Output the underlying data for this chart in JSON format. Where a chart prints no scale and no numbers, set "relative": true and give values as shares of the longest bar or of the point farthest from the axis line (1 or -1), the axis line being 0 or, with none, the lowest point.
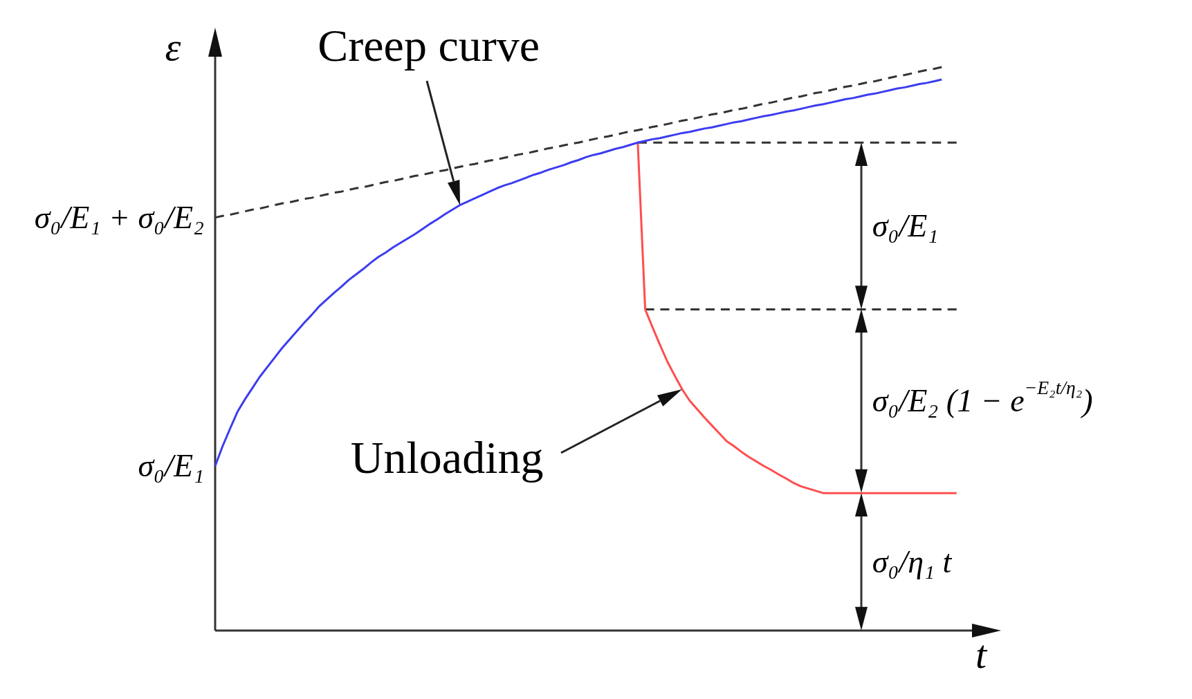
{
  "chart_data": {
    "type": "line",
    "xlabel": "t",
    "ylabel": "ε",
    "relative": true,
    "tick_labels": false,
    "marker": "none",
    "categories": [
      null,
      null,
      null,
      null,
      null,
      null,
      null,
      null,
      null,
      null,
      null,
      null,
      null,
      null,
      null,
      null,
      null,
      null,
      null,
      null,
      null,
      null,
      null,
      null,
      null,
      null,
      null,
      null,
      null,
      null,
      null,
      null,
      null,
      null,
      null,
      null,
      null,
      null,
      null,
      null,
      null,
      null,
      null,
      null,
      null,
      null,
      null,
      null,
      null,
      null,
      null,
      null,
      null,
      null,
      null,
      null,
      null,
      null,
      null,
      null,
      null,
      null,
      null,
      null,
      null,
      null,
      null,
      null,
      null,
      null,
      null,
      null,
      null,
      null,
      null,
      null,
      null,
      null,
      null,
      null,
      null,
      null,
      null,
      null,
      null,
      null,
      null,
      null,
      null,
      null,
      null,
      null,
      null,
      null,
      null,
      null,
      null,
      null,
      null,
      null,
      null,
      null,
      null,
      null,
      null,
      null,
      null
    ],
    "series": [
      {
        "color": "#3c3cf0",
        "values": [
          0.292,
          0.327,
          0.358,
          0.388,
          0.41,
          0.43,
          0.45,
          0.467,
          0.484,
          0.501,
          0.516,
          0.531,
          0.546,
          0.56,
          0.575,
          0.587,
          0.599,
          0.61,
          0.622,
          0.632,
          0.642,
          0.653,
          0.663,
          0.671,
          0.68,
          0.688,
          0.696,
          0.704,
          0.713,
          0.722,
          0.73,
          0.739,
          0.747,
          0.755,
          0.761,
          0.767,
          0.773,
          0.779,
          0.785,
          0.79,
          0.794,
          0.799,
          0.804,
          0.809,
          0.813,
          0.818,
          0.822,
          0.826,
          0.831,
          0.835,
          0.84,
          0.844,
          0.847,
          0.851,
          0.855,
          0.858,
          0.862,
          0.866,
          0.869,
          0.872,
          0.874,
          0.877,
          0.88,
          0.883,
          0.885,
          0.888,
          0.891,
          0.893,
          0.896,
          0.899,
          0.902,
          0.904,
          0.907,
          0.91,
          0.913,
          0.915,
          0.918,
          0.921,
          0.923,
          0.926,
          0.929,
          0.932,
          0.934,
          0.937,
          0.94,
          0.943,
          0.945,
          0.948,
          0.951,
          0.953,
          0.956,
          0.959,
          0.962,
          0.964,
          0.967,
          0.97,
          0.972,
          0.975,
          0.978,
          null,
          null,
          null,
          null,
          null,
          null,
          null,
          null
        ]
      },
      {
        "color": "#333333",
        "line_style": "dashed",
        "values": [
          0.733,
          0.736,
          0.738,
          0.741,
          0.744,
          0.747,
          0.749,
          0.752,
          0.755,
          0.758,
          0.76,
          0.763,
          0.766,
          0.768,
          0.771,
          0.774,
          0.777,
          0.779,
          0.782,
          0.785,
          0.787,
          0.79,
          0.793,
          0.796,
          0.798,
          0.801,
          0.804,
          0.807,
          0.809,
          0.812,
          0.815,
          0.817,
          0.82,
          0.823,
          0.826,
          0.828,
          0.831,
          0.834,
          0.836,
          0.839,
          0.842,
          0.845,
          0.847,
          0.85,
          0.853,
          0.856,
          0.858,
          0.861,
          0.864,
          0.866,
          0.869,
          0.872,
          0.875,
          0.877,
          0.88,
          0.883,
          0.886,
          0.888,
          0.891,
          0.894,
          0.896,
          0.899,
          0.902,
          0.905,
          0.907,
          0.91,
          0.913,
          0.916,
          0.918,
          0.921,
          0.924,
          0.926,
          0.929,
          0.932,
          0.935,
          0.937,
          0.94,
          0.943,
          0.946,
          0.948,
          0.951,
          0.954,
          0.956,
          0.959,
          0.962,
          0.965,
          0.967,
          0.97,
          0.973,
          0.975,
          0.978,
          0.981,
          0.984,
          0.986,
          0.989,
          0.992,
          0.995,
          0.997,
          1,
          null,
          null,
          null,
          null,
          null,
          null,
          null,
          null
        ]
      },
      {
        "color": "#ff4d4d",
        "values": [
          null,
          null,
          null,
          null,
          null,
          null,
          null,
          null,
          null,
          null,
          null,
          null,
          null,
          null,
          null,
          null,
          null,
          null,
          null,
          null,
          null,
          null,
          null,
          null,
          null,
          null,
          null,
          null,
          null,
          null,
          null,
          null,
          null,
          null,
          null,
          null,
          null,
          null,
          null,
          null,
          null,
          null,
          null,
          null,
          null,
          null,
          null,
          null,
          null,
          null,
          null,
          null,
          null,
          null,
          null,
          null,
          null,
          0.866,
          0.57,
          0.538,
          0.507,
          0.477,
          0.452,
          0.428,
          0.408,
          0.393,
          0.378,
          0.364,
          0.35,
          0.336,
          0.327,
          0.317,
          0.308,
          0.3,
          0.292,
          0.285,
          0.277,
          0.27,
          0.262,
          0.256,
          0.252,
          0.248,
          0.244,
          0.244,
          0.244,
          0.244,
          0.244,
          0.244,
          0.244,
          0.244,
          0.244,
          0.244,
          0.244,
          0.244,
          0.244,
          0.244,
          0.244,
          0.244,
          0.244,
          0.244,
          0.244,
          null,
          null,
          null,
          null,
          null,
          null
        ]
      },
      {
        "color": "#333333",
        "line_style": "dashed",
        "values": [
          null,
          null,
          null,
          null,
          null,
          null,
          null,
          null,
          null,
          null,
          null,
          null,
          null,
          null,
          null,
          null,
          null,
          null,
          null,
          null,
          null,
          null,
          null,
          null,
          null,
          null,
          null,
          null,
          null,
          null,
          null,
          null,
          null,
          null,
          null,
          null,
          null,
          null,
          null,
          null,
          null,
          null,
          null,
          null,
          null,
          null,
          null,
          null,
          null,
          null,
          null,
          null,
          null,
          null,
          null,
          null,
          null,
          0.866,
          0.866,
          0.866,
          0.866,
          0.866,
          0.866,
          0.866,
          0.866,
          0.866,
          0.866,
          0.866,
          0.866,
          0.866,
          0.866,
          0.866,
          0.866,
          0.866,
          0.866,
          0.866,
          0.866,
          0.866,
          0.866,
          0.866,
          0.866,
          0.866,
          0.866,
          0.866,
          0.866,
          0.866,
          0.866,
          0.866,
          0.866,
          0.866,
          0.866,
          0.866,
          0.866,
          0.866,
          0.866,
          0.866,
          0.866,
          0.866,
          0.866,
          0.866,
          0.866,
          null,
          null,
          null,
          null,
          null,
          null
        ]
      },
      {
        "color": "#333333",
        "line_style": "dashed",
        "values": [
          null,
          null,
          null,
          null,
          null,
          null,
          null,
          null,
          null,
          null,
          null,
          null,
          null,
          null,
          null,
          null,
          null,
          null,
          null,
          null,
          null,
          null,
          null,
          null,
          null,
          null,
          null,
          null,
          null,
          null,
          null,
          null,
          null,
          null,
          null,
          null,
          null,
          null,
          null,
          null,
          null,
          null,
          null,
          null,
          null,
          null,
          null,
          null,
          null,
          null,
          null,
          null,
          null,
          null,
          null,
          null,
          null,
          null,
          0.57,
          0.57,
          0.57,
          0.57,
          0.57,
          0.57,
          0.57,
          0.57,
          0.57,
          0.57,
          0.57,
          0.57,
          0.57,
          0.57,
          0.57,
          0.57,
          0.57,
          0.57,
          0.57,
          0.57,
          0.57,
          0.57,
          0.57,
          0.57,
          0.57,
          0.57,
          0.57,
          0.57,
          0.57,
          0.57,
          0.57,
          0.57,
          0.57,
          0.57,
          0.57,
          0.57,
          0.57,
          0.57,
          0.57,
          0.57,
          0.57,
          0.57,
          0.57,
          null,
          null,
          null,
          null,
          null,
          null
        ]
      }
    ],
    "annotations": [
      "σ₀/E₁ + σ₀/E₂",
      "σ₀/E₁",
      "Creep curve",
      "Unloading",
      "σ₀/E₁",
      "σ₀/E₂ (1 − e$^{−E₂t/η₂}$)",
      "σ₀/η₁ t"
    ]
  }
}
